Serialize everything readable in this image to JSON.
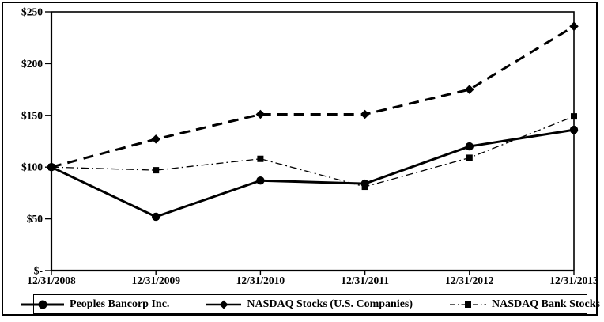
{
  "chart_data": {
    "type": "line",
    "title": "",
    "xlabel": "",
    "ylabel": "",
    "categories": [
      "12/31/2008",
      "12/31/2009",
      "12/31/2010",
      "12/31/2011",
      "12/31/2012",
      "12/31/2013"
    ],
    "series": [
      {
        "name": "Peoples Bancorp Inc.",
        "values": [
          100,
          52,
          87,
          84,
          120,
          136
        ],
        "marker": "circle",
        "line_style": "solid",
        "stroke_width": 3
      },
      {
        "name": "NASDAQ Stocks (U.S. Companies)",
        "values": [
          100,
          127,
          151,
          151,
          175,
          236
        ],
        "marker": "diamond",
        "line_style": "dashed",
        "stroke_width": 3
      },
      {
        "name": "NASDAQ Bank Stocks",
        "values": [
          100,
          97,
          108,
          81,
          109,
          149
        ],
        "marker": "square",
        "line_style": "dash-dot",
        "stroke_width": 1.3
      }
    ],
    "y_ticks": [
      {
        "label": "$-",
        "value": 0
      },
      {
        "label": "$50",
        "value": 50
      },
      {
        "label": "$100",
        "value": 100
      },
      {
        "label": "$150",
        "value": 150
      },
      {
        "label": "$200",
        "value": 200
      },
      {
        "label": "$250",
        "value": 250
      }
    ],
    "ylim": [
      0,
      250
    ],
    "grid": false,
    "legend_position": "bottom",
    "line_color": "#000000",
    "background_color": "#ffffff"
  },
  "legend": {
    "items": [
      {
        "label": "Peoples Bancorp Inc."
      },
      {
        "label": "NASDAQ Stocks (U.S. Companies)"
      },
      {
        "label": "NASDAQ Bank Stocks"
      }
    ]
  }
}
